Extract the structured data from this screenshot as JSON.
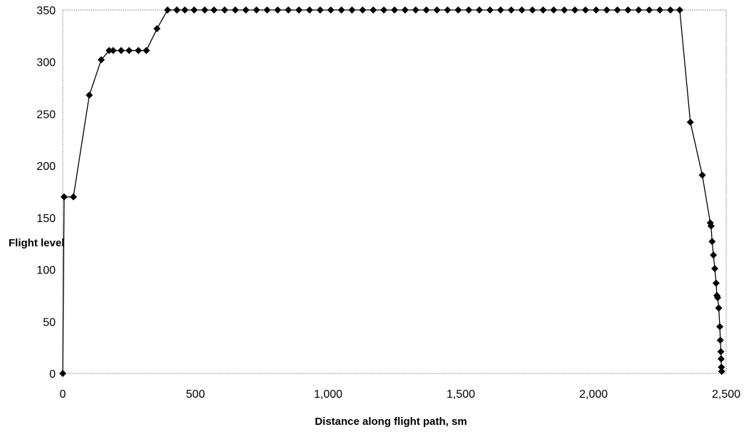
{
  "chart_data": {
    "type": "line",
    "title": "",
    "xlabel": "Distance along flight path, sm",
    "ylabel": "Flight level",
    "xlim": [
      0,
      2500
    ],
    "ylim": [
      0,
      350
    ],
    "x_ticks": [
      0,
      500,
      1000,
      1500,
      2000,
      2500
    ],
    "x_tick_labels": [
      "0",
      "500",
      "1,000",
      "1,500",
      "2,000",
      "2,500"
    ],
    "y_ticks": [
      0,
      50,
      100,
      150,
      200,
      250,
      300,
      350
    ],
    "y_tick_labels": [
      "0",
      "50",
      "100",
      "150",
      "200",
      "250",
      "300",
      "350"
    ],
    "grid": false,
    "legend": "none",
    "marker": "diamond",
    "color": "#000000",
    "series": [
      {
        "x": [
          0,
          5,
          40,
          100,
          145,
          175,
          190,
          220,
          250,
          285,
          315,
          355,
          395,
          430,
          460,
          495,
          535,
          570,
          610,
          650,
          690,
          730,
          770,
          810,
          850,
          890,
          930,
          970,
          1010,
          1050,
          1090,
          1130,
          1170,
          1210,
          1250,
          1290,
          1330,
          1370,
          1410,
          1450,
          1490,
          1530,
          1570,
          1610,
          1650,
          1690,
          1730,
          1770,
          1810,
          1850,
          1890,
          1930,
          1970,
          2010,
          2050,
          2090,
          2130,
          2170,
          2210,
          2250,
          2290,
          2325,
          2365,
          2410,
          2440,
          2443,
          2447,
          2452,
          2457,
          2462,
          2465,
          2468,
          2472,
          2476,
          2478,
          2480,
          2481,
          2482,
          2483
        ],
        "y": [
          0,
          170,
          170,
          268,
          302,
          311,
          311,
          311,
          311,
          311,
          311,
          332,
          350,
          350,
          350,
          350,
          350,
          350,
          350,
          350,
          350,
          350,
          350,
          350,
          350,
          350,
          350,
          350,
          350,
          350,
          350,
          350,
          350,
          350,
          350,
          350,
          350,
          350,
          350,
          350,
          350,
          350,
          350,
          350,
          350,
          350,
          350,
          350,
          350,
          350,
          350,
          350,
          350,
          350,
          350,
          350,
          350,
          350,
          350,
          350,
          350,
          350,
          242,
          191,
          145,
          142,
          127,
          114,
          101,
          87,
          75,
          73,
          63,
          45,
          32,
          21,
          14,
          6,
          2
        ]
      }
    ]
  }
}
